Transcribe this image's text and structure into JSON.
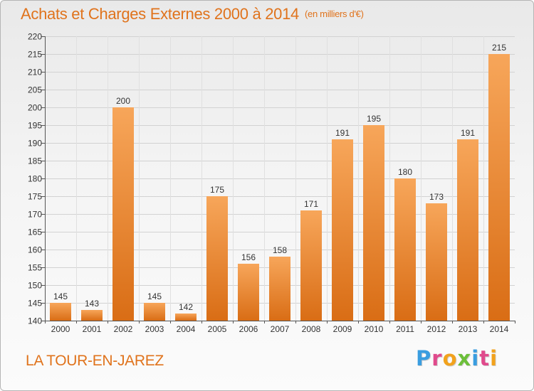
{
  "header": {
    "title": "Achats et Charges Externes 2000 à 2014",
    "subtitle": "(en milliers d'€)"
  },
  "footer": {
    "commune": "LA TOUR-EN-JAREZ",
    "brand": "Proxiti",
    "brand_colors": [
      "#3a9de0",
      "#e04a8c",
      "#f2a21c",
      "#6cbf3a",
      "#3a9de0",
      "#e04a8c",
      "#f2a21c"
    ]
  },
  "chart_data": {
    "type": "bar",
    "categories": [
      "2000",
      "2001",
      "2002",
      "2003",
      "2004",
      "2005",
      "2006",
      "2007",
      "2008",
      "2009",
      "2010",
      "2011",
      "2012",
      "2013",
      "2014"
    ],
    "values": [
      145,
      143,
      200,
      145,
      142,
      175,
      156,
      158,
      171,
      191,
      195,
      180,
      173,
      191,
      215
    ],
    "ylim": [
      140,
      220
    ],
    "yticks": [
      140,
      145,
      150,
      155,
      160,
      165,
      170,
      175,
      180,
      185,
      190,
      195,
      200,
      205,
      210,
      215,
      220
    ],
    "grid": true,
    "bar_color_top": "#f7a65a",
    "bar_color_bottom": "#d96d15",
    "title": "Achats et Charges Externes 2000 à 2014",
    "xlabel": "",
    "ylabel": ""
  }
}
